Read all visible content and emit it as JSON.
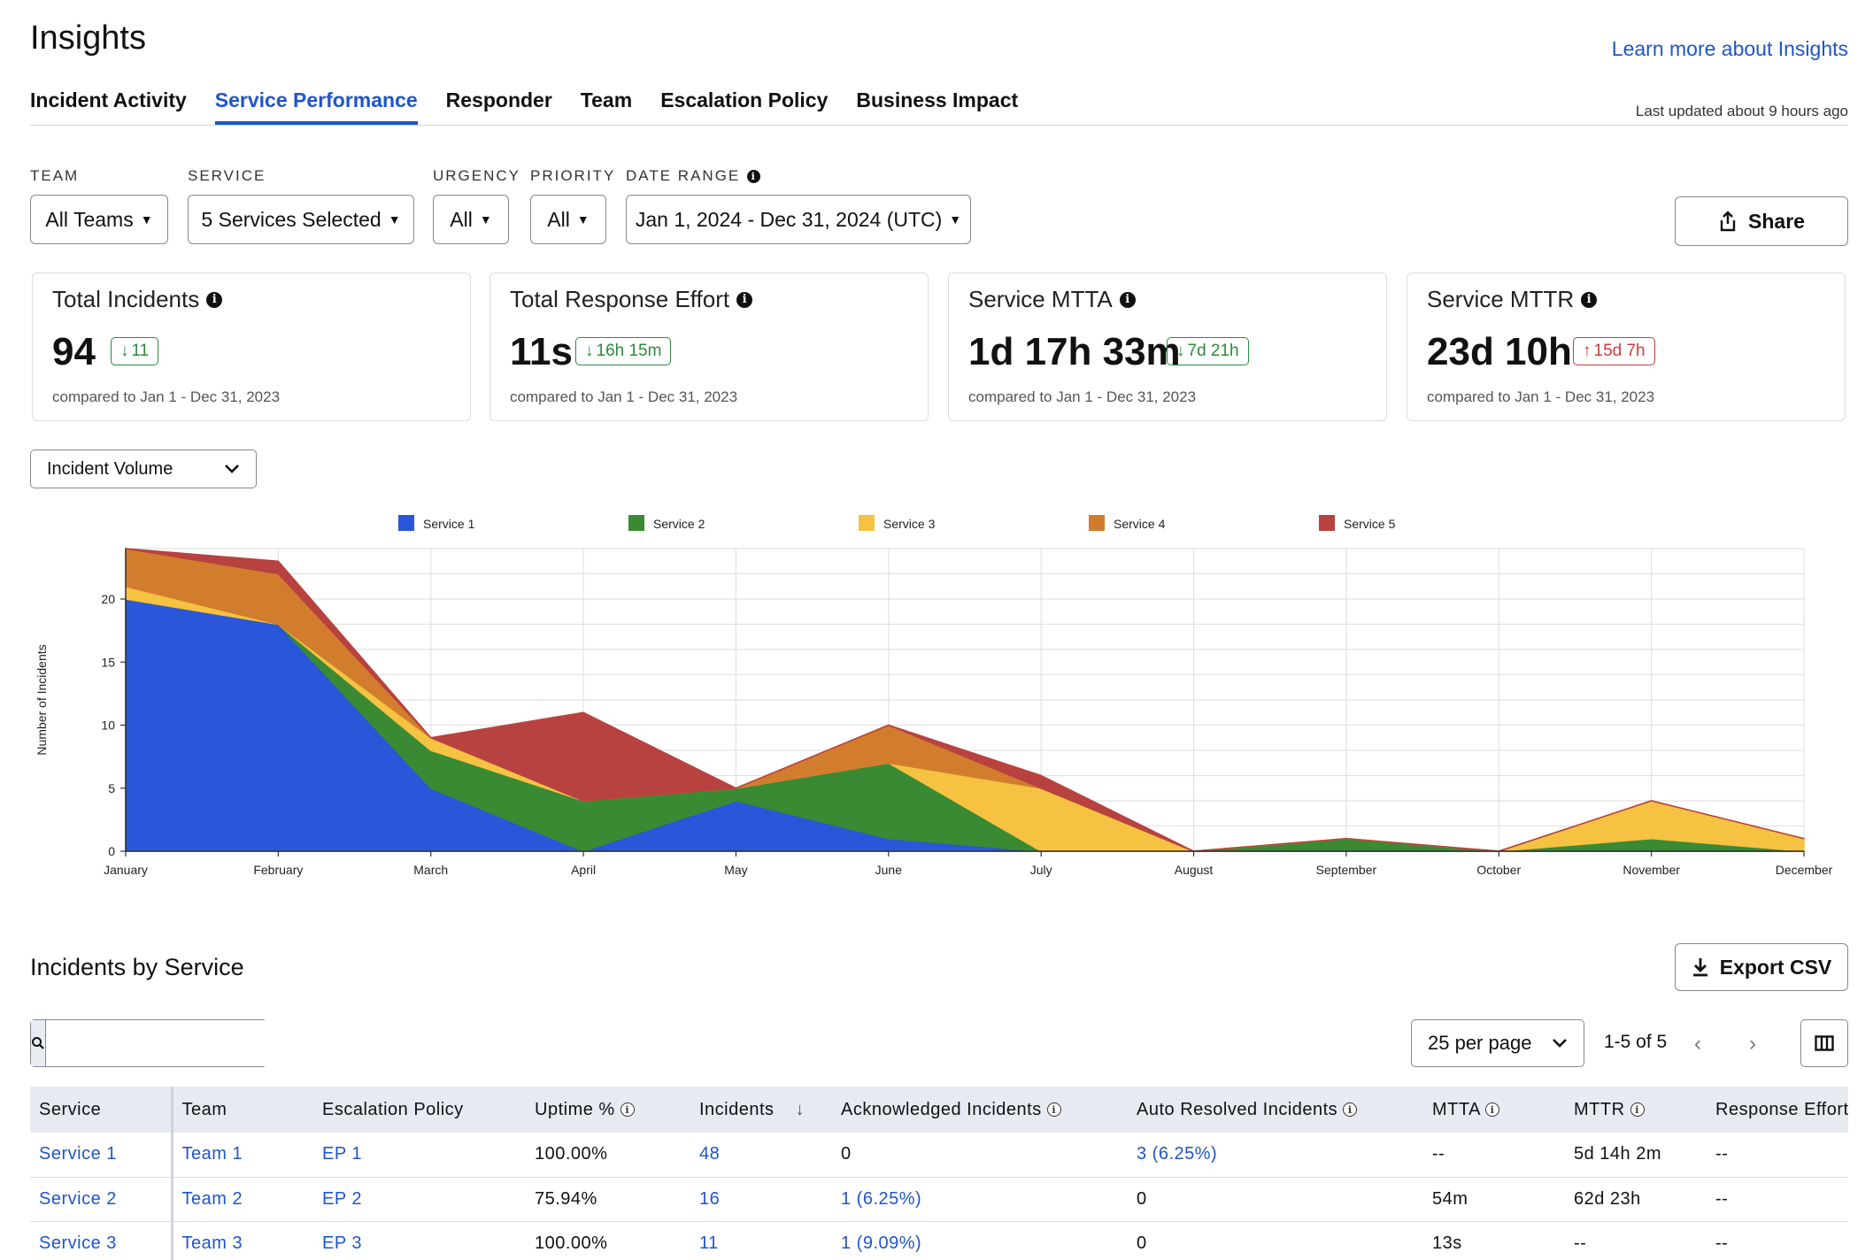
{
  "header": {
    "title": "Insights",
    "learn_link": "Learn more about Insights",
    "last_updated": "Last updated about 9 hours ago"
  },
  "tabs": [
    {
      "label": "Incident Activity",
      "active": false
    },
    {
      "label": "Service Performance",
      "active": true
    },
    {
      "label": "Responder",
      "active": false
    },
    {
      "label": "Team",
      "active": false
    },
    {
      "label": "Escalation Policy",
      "active": false
    },
    {
      "label": "Business Impact",
      "active": false
    }
  ],
  "filters": {
    "team": {
      "label": "TEAM",
      "value": "All Teams"
    },
    "service": {
      "label": "SERVICE",
      "value": "5 Services Selected"
    },
    "urgency": {
      "label": "URGENCY",
      "value": "All"
    },
    "priority": {
      "label": "PRIORITY",
      "value": "All"
    },
    "date_range": {
      "label": "DATE RANGE",
      "value": "Jan 1, 2024 - Dec 31, 2024 (UTC)"
    }
  },
  "share_label": "Share",
  "cards": [
    {
      "title": "Total Incidents",
      "value": "94",
      "delta": "11",
      "direction": "down",
      "compare": "compared to Jan 1 - Dec 31, 2023"
    },
    {
      "title": "Total Response Effort",
      "value": "11s",
      "delta": "16h 15m",
      "direction": "down",
      "compare": "compared to Jan 1 - Dec 31, 2023"
    },
    {
      "title": "Service MTTA",
      "value": "1d 17h 33m",
      "delta": "7d 21h",
      "direction": "down",
      "compare": "compared to Jan 1 - Dec 31, 2023"
    },
    {
      "title": "Service MTTR",
      "value": "23d 10h",
      "delta": "15d 7h",
      "direction": "up",
      "compare": "compared to Jan 1 - Dec 31, 2023"
    }
  ],
  "metric_select": "Incident Volume",
  "chart_data": {
    "type": "area",
    "stacked": true,
    "ylabel": "Number of Incidents",
    "xlabel": "",
    "ylim": [
      0,
      24
    ],
    "yticks": [
      0,
      5,
      10,
      15,
      20
    ],
    "categories": [
      "January",
      "February",
      "March",
      "April",
      "May",
      "June",
      "July",
      "August",
      "September",
      "October",
      "November",
      "December"
    ],
    "legend_position": "top",
    "grid": true,
    "series": [
      {
        "name": "Service 1",
        "color": "#2a56d9",
        "values": [
          20,
          18,
          5,
          0,
          4,
          1,
          0,
          0,
          0,
          0,
          0,
          0
        ]
      },
      {
        "name": "Service 2",
        "color": "#3a8a34",
        "values": [
          0,
          0,
          3,
          4,
          1,
          6,
          0,
          0,
          1,
          0,
          1,
          0
        ]
      },
      {
        "name": "Service 3",
        "color": "#f5c242",
        "values": [
          1,
          0,
          1,
          0,
          0,
          0,
          5,
          0,
          0,
          0,
          3,
          1
        ]
      },
      {
        "name": "Service 4",
        "color": "#d27d2d",
        "values": [
          3,
          4,
          0,
          0,
          0,
          3,
          0,
          0,
          0,
          0,
          0,
          0
        ]
      },
      {
        "name": "Service 5",
        "color": "#b8423f",
        "values": [
          0,
          1,
          0,
          7,
          0,
          0,
          1,
          0,
          0,
          0,
          0,
          0
        ]
      }
    ]
  },
  "table_section": {
    "title": "Incidents by Service",
    "export_label": "Export CSV",
    "search_placeholder": "",
    "per_page": "25 per page",
    "page_info": "1-5 of 5"
  },
  "table": {
    "columns": [
      "Service",
      "Team",
      "Escalation Policy",
      "Uptime %",
      "Incidents",
      "Acknowledged Incidents",
      "Auto Resolved Incidents",
      "MTTA",
      "MTTR",
      "Response Effort"
    ],
    "rows": [
      [
        "Service 1",
        "Team 1",
        "EP 1",
        "100.00%",
        "48",
        "0",
        "3 (6.25%)",
        "--",
        "5d 14h 2m",
        "--"
      ],
      [
        "Service 2",
        "Team 2",
        "EP 2",
        "75.94%",
        "16",
        "1 (6.25%)",
        "0",
        "54m",
        "62d 23h",
        "--"
      ],
      [
        "Service 3",
        "Team 3",
        "EP 3",
        "100.00%",
        "11",
        "1 (9.09%)",
        "0",
        "13s",
        "--",
        "--"
      ]
    ]
  }
}
